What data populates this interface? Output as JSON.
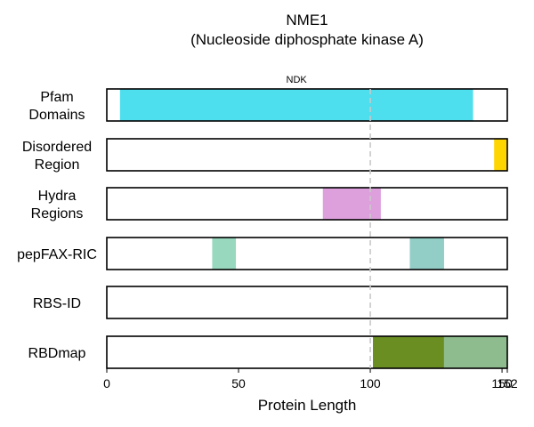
{
  "chart_data": {
    "type": "bar",
    "title": "NME1",
    "subtitle": "(Nucleoside diphosphate kinase A)",
    "xlabel": "Protein Length",
    "xlim": [
      0,
      152
    ],
    "xticks": [
      0,
      50,
      100,
      150,
      152
    ],
    "xtick_labels": [
      "0",
      "50",
      "100",
      "150",
      "152"
    ],
    "reference_line_x": 100,
    "grid": false,
    "tracks": [
      {
        "label_lines": [
          "Pfam",
          "Domains"
        ],
        "segments": [
          {
            "start": 5,
            "end": 139,
            "color": "#4ddfee",
            "label": "NDK"
          }
        ]
      },
      {
        "label_lines": [
          "Disordered",
          "Region"
        ],
        "segments": [
          {
            "start": 147,
            "end": 152,
            "color": "#ffd500"
          }
        ]
      },
      {
        "label_lines": [
          "Hydra",
          "Regions"
        ],
        "segments": [
          {
            "start": 82,
            "end": 104,
            "color": "#dda0dd"
          }
        ]
      },
      {
        "label_lines": [
          "pepFAX-RIC"
        ],
        "segments": [
          {
            "start": 40,
            "end": 49,
            "color": "#98d8be"
          },
          {
            "start": 115,
            "end": 128,
            "color": "#92cdc6"
          }
        ]
      },
      {
        "label_lines": [
          "RBS-ID"
        ],
        "segments": []
      },
      {
        "label_lines": [
          "RBDmap"
        ],
        "segments": [
          {
            "start": 101,
            "end": 128,
            "color": "#6b8e23"
          },
          {
            "start": 128,
            "end": 152,
            "color": "#8fbc8f"
          }
        ]
      }
    ]
  }
}
